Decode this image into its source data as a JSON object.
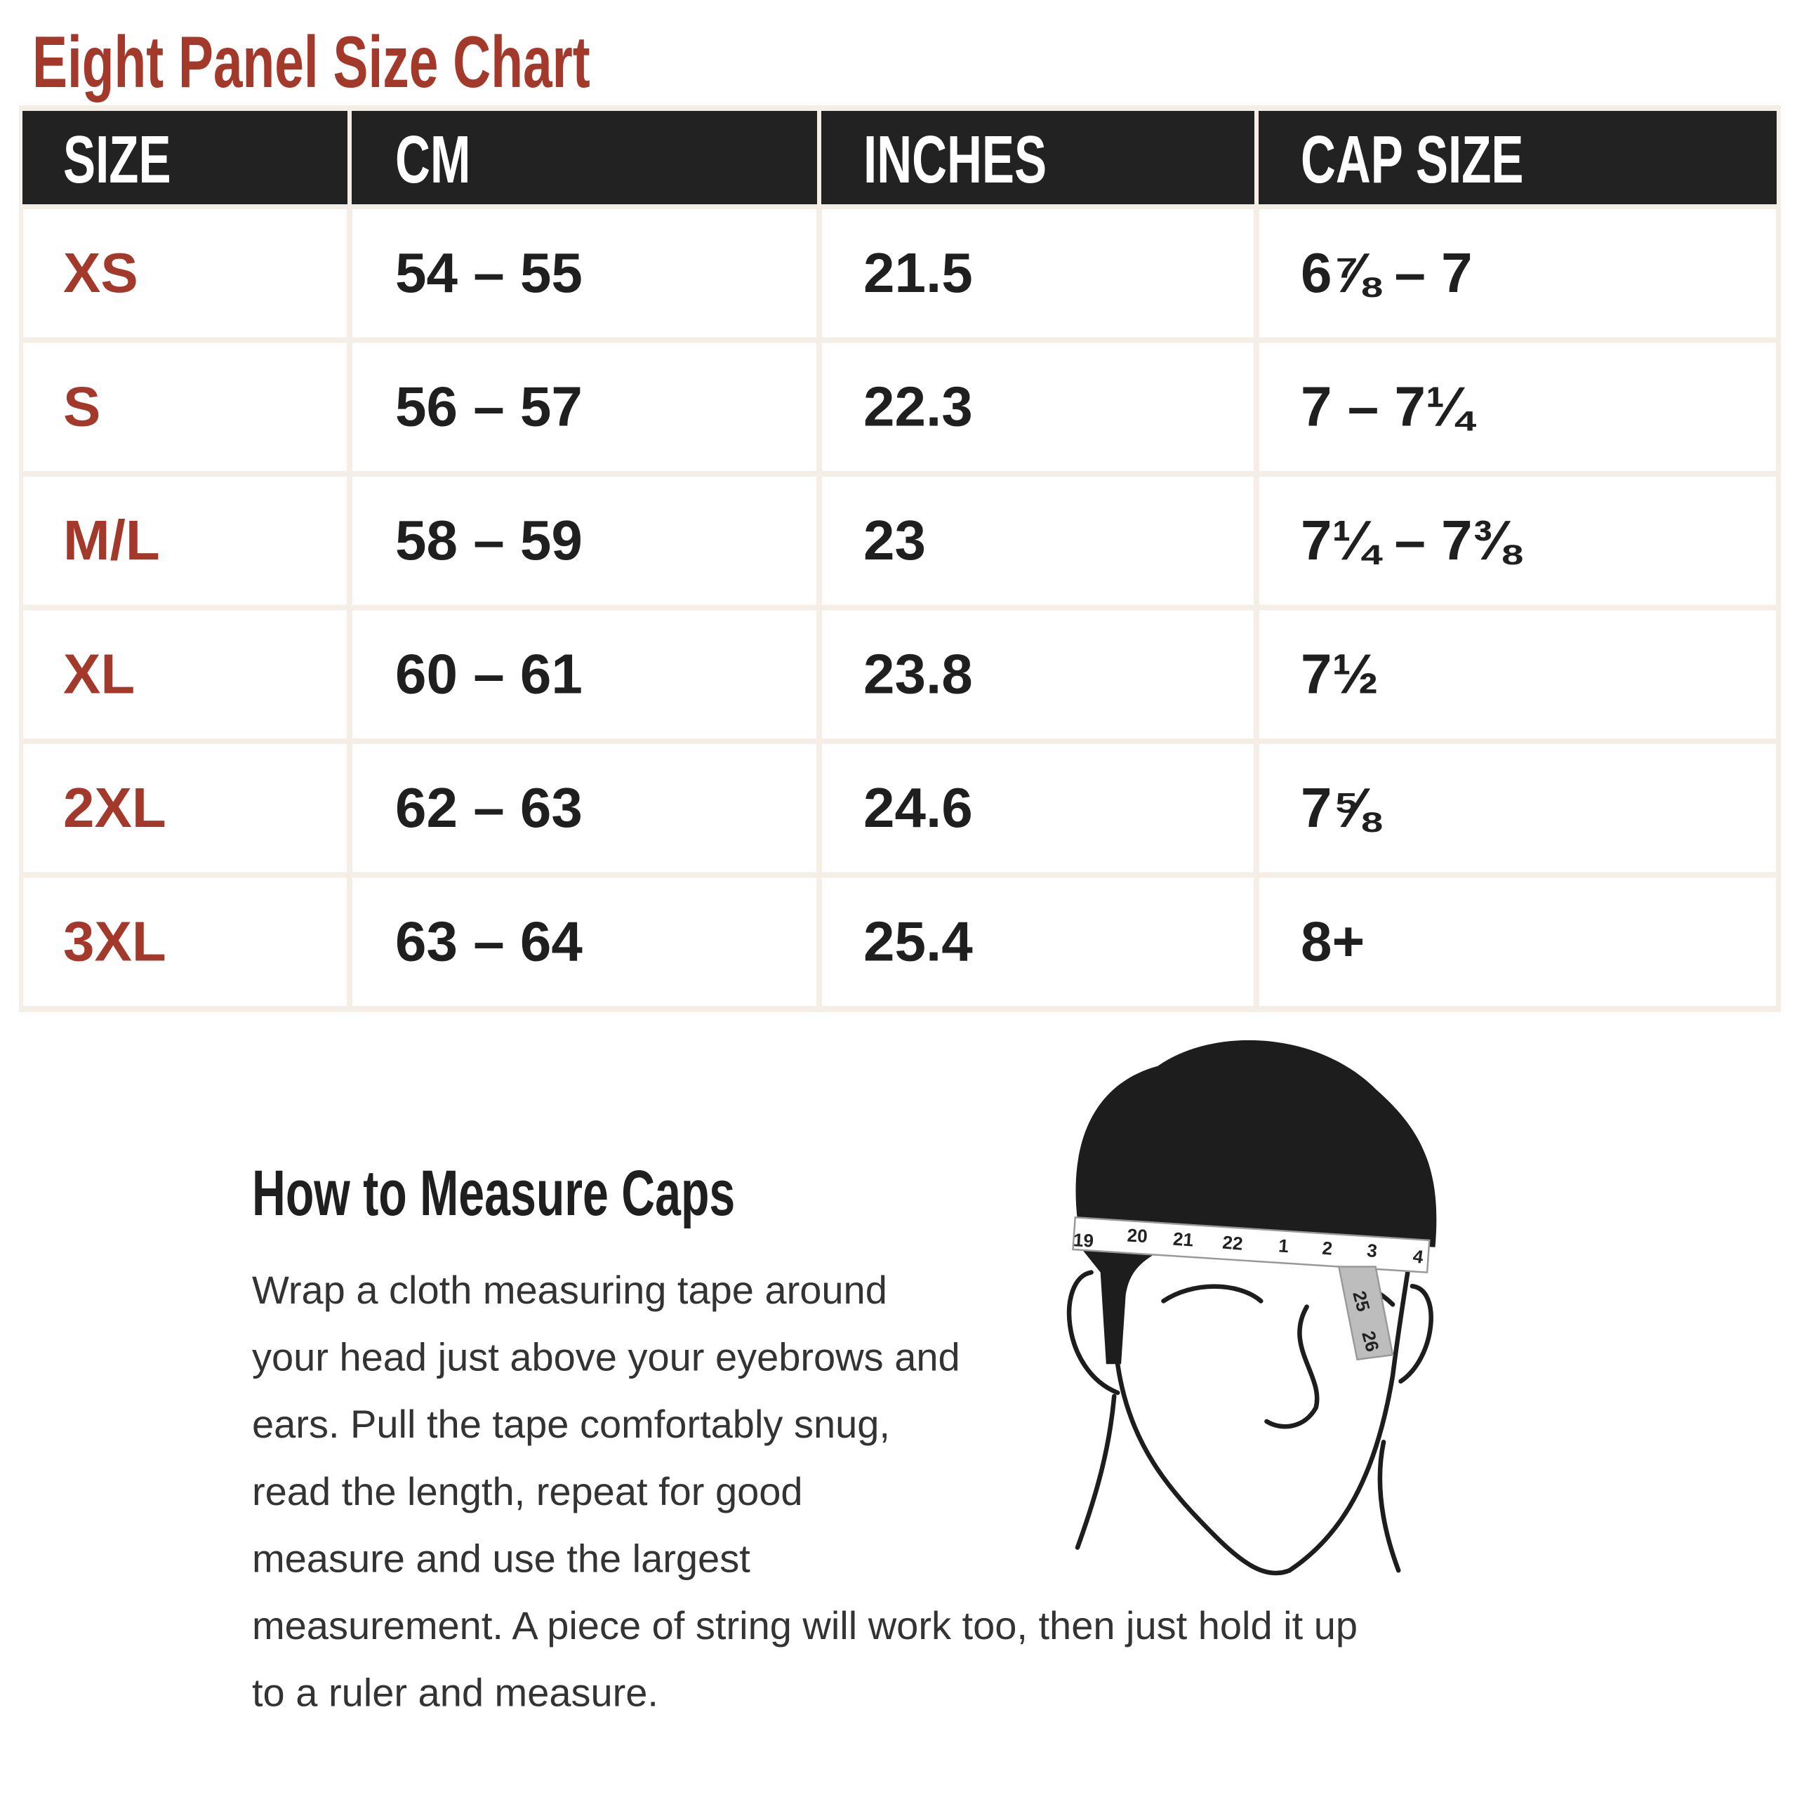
{
  "header": {
    "title": "Eight Panel Size Chart"
  },
  "table": {
    "columns": [
      "SIZE",
      "CM",
      "INCHES",
      "CAP SIZE"
    ],
    "rows": [
      [
        "XS",
        "54 – 55",
        "21.5",
        "6⅞ – 7"
      ],
      [
        "S",
        "56 – 57",
        "22.3",
        "7 – 7¼"
      ],
      [
        "M/L",
        "58 – 59",
        "23",
        "7¼ – 7⅜"
      ],
      [
        "XL",
        "60 – 61",
        "23.8",
        "7½"
      ],
      [
        "2XL",
        "62 – 63",
        "24.6",
        "7⅝"
      ],
      [
        "3XL",
        "63 – 64",
        "25.4",
        "8+"
      ]
    ]
  },
  "how_to": {
    "title": "How to Measure Caps",
    "lines": [
      "Wrap a cloth measuring tape around",
      "your head just above your eyebrows and",
      "ears. Pull the tape comfortably snug,",
      "read the length, repeat for good",
      "measure and use the largest",
      "measurement. A piece of string will work too, then just hold it up",
      "to a ruler and measure."
    ]
  },
  "illustration": {
    "tape_labels": [
      "19",
      "20",
      "21",
      "22",
      "1",
      "2",
      "3",
      "4",
      "25",
      "26"
    ]
  }
}
